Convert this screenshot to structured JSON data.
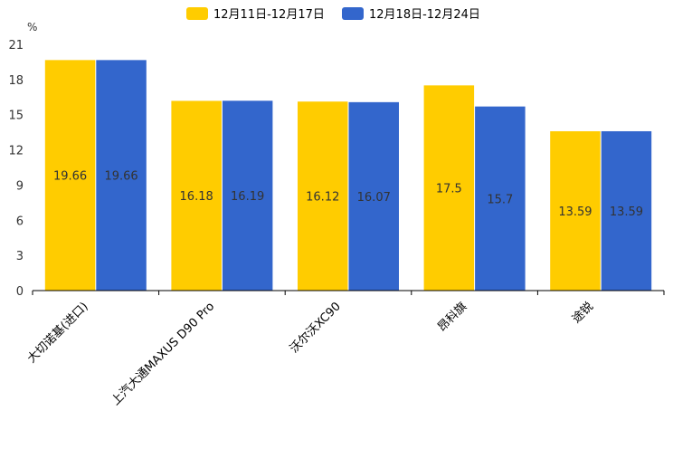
{
  "chart_data": {
    "type": "bar",
    "title": "",
    "ylabel": "%",
    "xlabel": "",
    "ylim": [
      0,
      21
    ],
    "yticks": [
      0,
      3,
      6,
      9,
      12,
      15,
      18,
      21
    ],
    "categories": [
      "大切诺基(进口)",
      "上汽大通MAXUS D90 Pro",
      "沃尔沃XC90",
      "昂科旗",
      "途锐"
    ],
    "series": [
      {
        "name": "12月11日-12月17日",
        "color": "#FFCC00",
        "values": [
          19.66,
          16.18,
          16.12,
          17.5,
          13.59
        ]
      },
      {
        "name": "12月18日-12月24日",
        "color": "#3366CC",
        "values": [
          19.66,
          16.19,
          16.07,
          15.7,
          13.59
        ]
      }
    ],
    "legend": "top-center",
    "grid": false
  }
}
